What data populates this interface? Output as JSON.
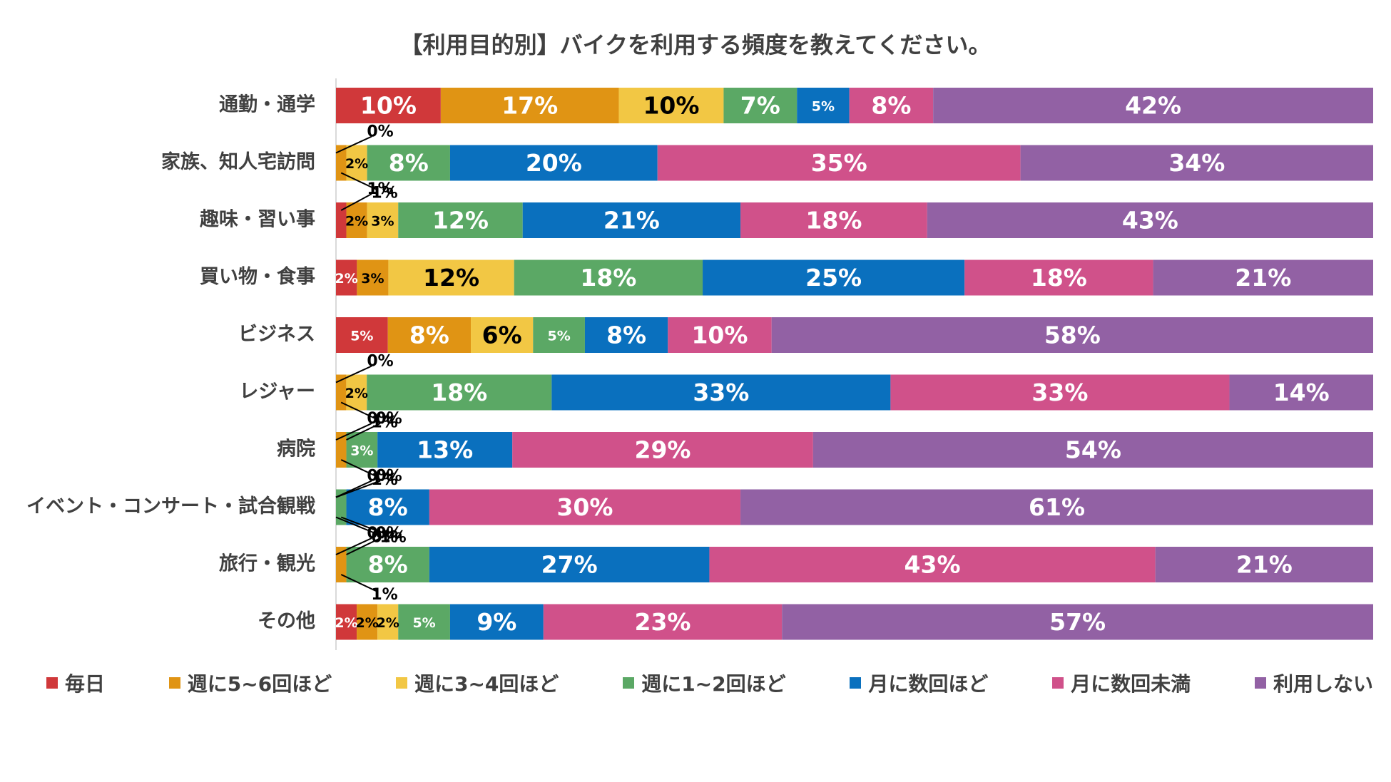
{
  "chart_data": {
    "type": "bar",
    "orientation": "horizontal",
    "stacked": true,
    "title": "【利用目的別】バイクを利用する頻度を教えてください。",
    "xlabel": "",
    "ylabel": "",
    "xlim": [
      0,
      100
    ],
    "legend_position": "bottom",
    "categories": [
      "通勤・通学",
      "家族、知人宅訪問",
      "趣味・習い事",
      "買い物・食事",
      "ビジネス",
      "レジャー",
      "病院",
      "イベント・コンサート・試合観戦",
      "旅行・観光",
      "その他"
    ],
    "series": [
      {
        "name": "毎日",
        "color": "#D0383A",
        "values": [
          10,
          0,
          1,
          2,
          5,
          0,
          0,
          0,
          0,
          2
        ]
      },
      {
        "name": "週に5~6回ほど",
        "color": "#E09414",
        "values": [
          17,
          1,
          2,
          3,
          8,
          1,
          1,
          0,
          1,
          2
        ]
      },
      {
        "name": "週に3~4回ほど",
        "color": "#F2C744",
        "values": [
          10,
          2,
          3,
          12,
          6,
          2,
          0,
          0,
          0,
          2
        ]
      },
      {
        "name": "週に1~2回ほど",
        "color": "#5BA865",
        "values": [
          7,
          8,
          12,
          18,
          5,
          18,
          3,
          1,
          8,
          5
        ]
      },
      {
        "name": "月に数回ほど",
        "color": "#0A70BE",
        "values": [
          5,
          20,
          21,
          25,
          8,
          33,
          13,
          8,
          27,
          9
        ]
      },
      {
        "name": "月に数回未満",
        "color": "#D0518A",
        "values": [
          8,
          35,
          18,
          18,
          10,
          33,
          29,
          30,
          43,
          23
        ]
      },
      {
        "name": "利用しない",
        "color": "#9261A4",
        "values": [
          42,
          34,
          43,
          21,
          58,
          14,
          54,
          61,
          21,
          57
        ]
      }
    ]
  }
}
